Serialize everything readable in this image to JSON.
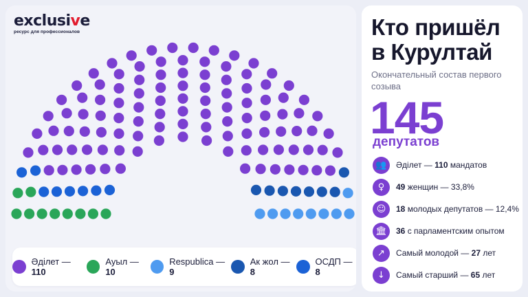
{
  "brand": {
    "name_main": "exclusi",
    "name_accent": "v",
    "name_end": "e",
    "tagline": "ресурс для профессионалов"
  },
  "header": {
    "title": "Кто пришёл в Курултай",
    "subtitle": "Окончательный состав первого созыва"
  },
  "total": {
    "value": "145",
    "label": "депутатов"
  },
  "stats": [
    {
      "icon": "people-icon",
      "glyph": "👥",
      "pre": "Әділет — ",
      "bold": "110",
      "post": " мандатов"
    },
    {
      "icon": "female-icon",
      "glyph": "♀",
      "pre": "",
      "bold": "49",
      "post": " женщин — 33,8%"
    },
    {
      "icon": "young-person-icon",
      "glyph": "☺",
      "pre": "",
      "bold": "18",
      "post": " молодых депутатов — 12,4%"
    },
    {
      "icon": "parliament-building-icon",
      "glyph": "🏛",
      "pre": "",
      "bold": "36",
      "post": " с парламентским опытом"
    },
    {
      "icon": "arrow-up-right-icon",
      "glyph": "↗",
      "pre": "Самый молодой — ",
      "bold": "27",
      "post": " лет"
    },
    {
      "icon": "arrow-down-icon",
      "glyph": "↓",
      "pre": "Самый старший — ",
      "bold": "65",
      "post": " лет"
    }
  ],
  "chart_data": {
    "type": "hemicycle",
    "total_seats": 145,
    "series": [
      {
        "name": "Әділет",
        "value": 110,
        "color": "#7b3fd1"
      },
      {
        "name": "Ауыл",
        "value": 10,
        "color": "#2aa659"
      },
      {
        "name": "Respublica",
        "value": 9,
        "color": "#4f9bf0"
      },
      {
        "name": "Ак жол",
        "value": 8,
        "color": "#1a57b0"
      },
      {
        "name": "ОСДП",
        "value": 8,
        "color": "#1b62d6"
      }
    ],
    "legend": [
      {
        "label": "Әділет — ",
        "value": "110",
        "color": "#7b3fd1"
      },
      {
        "label": "Ауыл — ",
        "value": "10",
        "color": "#2aa659"
      },
      {
        "label": "Respublica — ",
        "value": "9",
        "color": "#4f9bf0"
      },
      {
        "label": "Ак жол — ",
        "value": "8",
        "color": "#1a57b0"
      },
      {
        "label": "ОСДП — ",
        "value": "8",
        "color": "#1b62d6"
      }
    ],
    "legend_position": "bottom"
  }
}
